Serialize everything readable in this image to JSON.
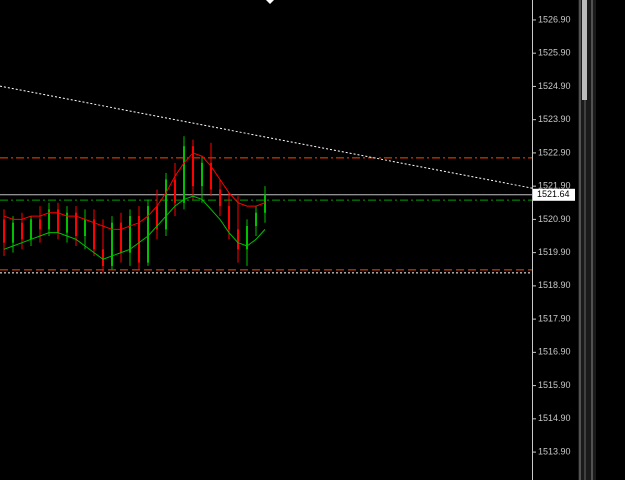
{
  "chart_data": {
    "type": "candlestick",
    "up_color": "#00c000",
    "down_color": "#ff0000",
    "open": [
      1520.9,
      1520.2,
      1520.8,
      1520.3,
      1520.9,
      1520.6,
      1521.2,
      1520.5,
      1521.1,
      1520.4,
      1520.9,
      1520.0,
      1519.5,
      1520.8,
      1519.9,
      1521.0,
      1519.6,
      1521.3,
      1520.6,
      1522.1,
      1521.4,
      1523.1,
      1521.9,
      1522.6,
      1521.8,
      1521.3,
      1520.6,
      1520.0,
      1520.7,
      1521.1
    ],
    "high": [
      1521.2,
      1521.0,
      1521.1,
      1521.0,
      1521.3,
      1521.4,
      1521.4,
      1521.3,
      1521.3,
      1521.2,
      1521.2,
      1520.9,
      1521.0,
      1521.1,
      1521.2,
      1521.3,
      1521.5,
      1521.8,
      1522.3,
      1522.6,
      1523.4,
      1523.3,
      1522.8,
      1523.2,
      1522.1,
      1521.7,
      1521.6,
      1520.9,
      1521.3,
      1521.9
    ],
    "low": [
      1519.8,
      1519.9,
      1520.0,
      1520.1,
      1520.2,
      1520.4,
      1520.3,
      1520.2,
      1520.1,
      1520.0,
      1519.8,
      1519.3,
      1519.4,
      1519.6,
      1519.5,
      1519.4,
      1519.5,
      1520.3,
      1520.4,
      1521.0,
      1521.2,
      1521.5,
      1521.4,
      1521.6,
      1521.0,
      1520.3,
      1519.6,
      1519.5,
      1520.4,
      1520.8
    ],
    "close": [
      1520.2,
      1520.8,
      1520.3,
      1520.9,
      1520.6,
      1521.2,
      1520.5,
      1521.1,
      1520.4,
      1520.9,
      1520.0,
      1519.5,
      1520.8,
      1519.9,
      1521.0,
      1519.6,
      1521.3,
      1520.6,
      1522.1,
      1521.4,
      1523.1,
      1521.9,
      1522.6,
      1521.8,
      1521.3,
      1520.6,
      1520.0,
      1520.7,
      1521.1,
      1521.64
    ],
    "lines": [
      {
        "color": "#ff0000",
        "values": [
          1521.0,
          1520.9,
          1520.9,
          1521.0,
          1521.0,
          1521.1,
          1521.1,
          1521.0,
          1521.0,
          1520.9,
          1520.8,
          1520.7,
          1520.6,
          1520.6,
          1520.7,
          1520.8,
          1521.0,
          1521.3,
          1521.7,
          1522.2,
          1522.6,
          1522.9,
          1522.8,
          1522.5,
          1522.1,
          1521.7,
          1521.4,
          1521.3,
          1521.3,
          1521.4
        ]
      },
      {
        "color": "#00c000",
        "values": [
          1520.0,
          1520.1,
          1520.2,
          1520.3,
          1520.4,
          1520.5,
          1520.5,
          1520.4,
          1520.3,
          1520.1,
          1519.9,
          1519.7,
          1519.8,
          1519.9,
          1520.0,
          1520.2,
          1520.4,
          1520.7,
          1521.0,
          1521.3,
          1521.5,
          1521.6,
          1521.5,
          1521.2,
          1520.9,
          1520.5,
          1520.2,
          1520.1,
          1520.3,
          1520.6
        ]
      }
    ],
    "levels": [
      {
        "value": 1522.75,
        "color": "#ff4500",
        "dash": "8 3 2 3"
      },
      {
        "value": 1519.38,
        "color": "#ff4500",
        "dash": "8 4"
      },
      {
        "value": 1521.48,
        "color": "#00a000",
        "dash": "8 3 2 3"
      },
      {
        "value": 1519.29,
        "color": "#ffffff",
        "dash": "2 2"
      }
    ],
    "trendline": {
      "color": "#ffffff",
      "values": [
        1524.91,
        1521.84
      ]
    },
    "current_price": 1521.64,
    "ylim": [
      1513.06,
      1527.5
    ],
    "yticks": [
      {
        "value": 1526.9,
        "label": "1526.90"
      },
      {
        "value": 1525.9,
        "label": "1525.90"
      },
      {
        "value": 1524.9,
        "label": "1524.90"
      },
      {
        "value": 1523.9,
        "label": "1523.90"
      },
      {
        "value": 1522.9,
        "label": "1522.90"
      },
      {
        "value": 1521.9,
        "label": "1521.90"
      },
      {
        "value": 1520.9,
        "label": "1520.90"
      },
      {
        "value": 1519.9,
        "label": "1519.90"
      },
      {
        "value": 1518.9,
        "label": "1518.90"
      },
      {
        "value": 1517.9,
        "label": "1517.90"
      },
      {
        "value": 1516.9,
        "label": "1516.90"
      },
      {
        "value": 1515.9,
        "label": "1515.90"
      },
      {
        "value": 1514.9,
        "label": "1514.90"
      },
      {
        "value": 1513.9,
        "label": "1513.90"
      }
    ]
  }
}
